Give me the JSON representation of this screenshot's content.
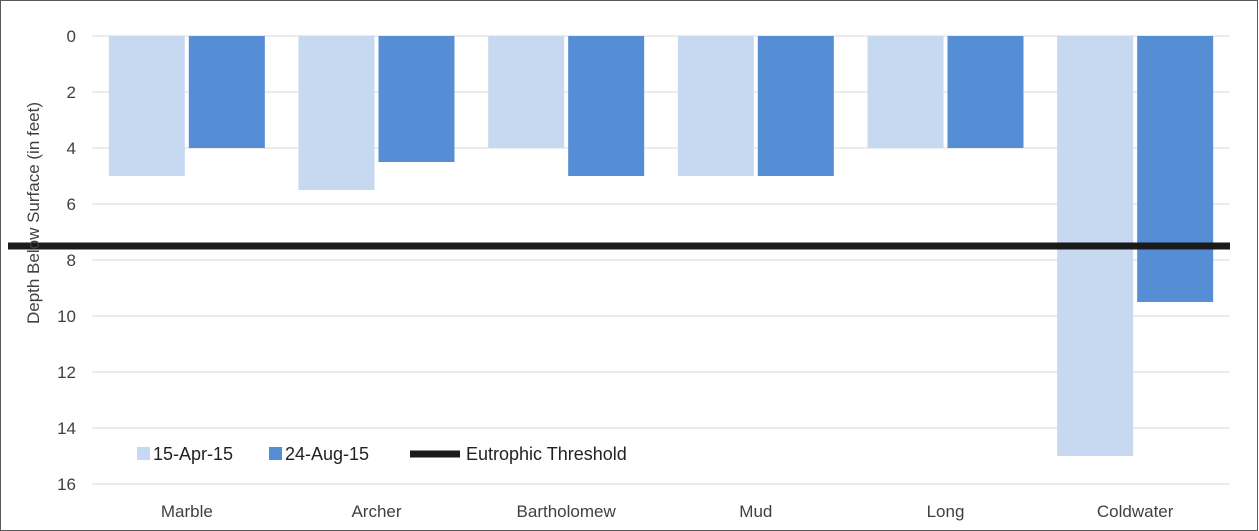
{
  "chart_data": {
    "type": "bar",
    "categories": [
      "Marble",
      "Archer",
      "Bartholomew",
      "Mud",
      "Long",
      "Coldwater"
    ],
    "series": [
      {
        "name": "15-Apr-15",
        "values": [
          5,
          5.5,
          4,
          5,
          4,
          15
        ],
        "color": "#c6d9f1"
      },
      {
        "name": "24-Aug-15",
        "values": [
          4,
          4.5,
          5,
          5,
          4,
          9.5
        ],
        "color": "#558ed5"
      }
    ],
    "threshold": {
      "name": "Eutrophic Threshold",
      "value": 7.5,
      "color": "#1a1a1a"
    },
    "ylabel": "Depth Below Surface (in feet)",
    "ylim": [
      0,
      16
    ],
    "y_inverted": true,
    "yticks": [
      0,
      2,
      4,
      6,
      8,
      10,
      12,
      14,
      16
    ],
    "grid": true,
    "legend_position": "bottom-left"
  }
}
